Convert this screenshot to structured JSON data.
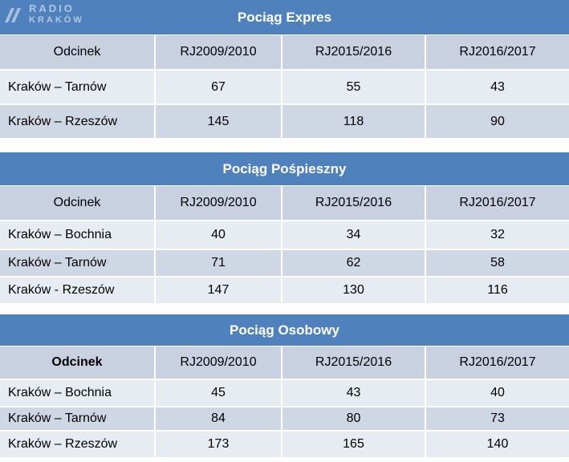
{
  "watermark": {
    "line1": "RADIO",
    "line2": "KRAKÓW"
  },
  "tables": [
    {
      "title": "Pociąg Expres",
      "header": [
        "Odcinek",
        "RJ2009/2010",
        "RJ2015/2016",
        "RJ2016/2017"
      ],
      "rows": [
        [
          "Kraków – Tarnów",
          "67",
          "55",
          "43"
        ],
        [
          "Kraków – Rzeszów",
          "145",
          "118",
          "90"
        ]
      ]
    },
    {
      "title": "Pociąg Pośpieszny",
      "header": [
        "Odcinek",
        "RJ2009/2010",
        "RJ2015/2016",
        "RJ2016/2017"
      ],
      "rows": [
        [
          "Kraków – Bochnia",
          "40",
          "34",
          "32"
        ],
        [
          "Kraków – Tarnów",
          "71",
          "62",
          "58"
        ],
        [
          "Kraków - Rzeszów",
          "147",
          "130",
          "116"
        ]
      ]
    },
    {
      "title": "Pociąg Osobowy",
      "header": [
        "Odcinek",
        "RJ2009/2010",
        "RJ2015/2016",
        "RJ2016/2017"
      ],
      "rows": [
        [
          "Kraków – Bochnia",
          "45",
          "43",
          "40"
        ],
        [
          "Kraków – Tarnów",
          "84",
          "80",
          "73"
        ],
        [
          "Kraków – Rzeszów",
          "173",
          "165",
          "140"
        ]
      ]
    }
  ]
}
